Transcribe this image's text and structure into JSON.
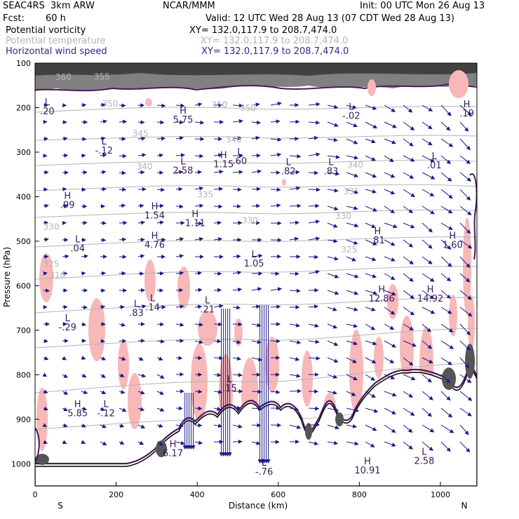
{
  "header": {
    "model": "SEAC4RS  3km ARW",
    "org": "NCAR/MMM",
    "init": "Init: 00 UTC Mon 26 Aug 13",
    "fcst_label": "Fcst:",
    "fcst_value": "60 h",
    "valid": "Valid: 12 UTC Wed 28 Aug 13 (07 CDT Wed 28 Aug 13)",
    "field1": "Potential vorticity",
    "field2": "Potential temperature",
    "field3": "Horizontal wind speed",
    "xy1": "XY= 132.0,117.9 to 208.7,474.0",
    "xy2": "XY= 132.0,117.9 to 208.7,474.0",
    "xy3": "XY= 132.0,117.9 to 208.7,474.0"
  },
  "colors": {
    "pv_shade": "#f8b8b8",
    "theta_contour": "#b4b4b4",
    "wind_arrow": "#1a1a8c",
    "terrain_line": "#000000",
    "pv_contour": "#4a1a5a"
  },
  "chart_data": {
    "type": "cross-section",
    "xlabel": "Distance (km)",
    "ylabel": "Pressure (hPa)",
    "xlim": [
      0,
      1090
    ],
    "ylim": [
      1050,
      100
    ],
    "x_ticks": [
      "0",
      "200",
      "400",
      "600",
      "800",
      "1000"
    ],
    "y_ticks": [
      "100",
      "200",
      "300",
      "400",
      "500",
      "600",
      "700",
      "800",
      "900",
      "1000"
    ],
    "x_end_labels": {
      "left": "S",
      "right": "N"
    },
    "theta_labels": [
      {
        "label": "350",
        "x": 185,
        "p": 198
      },
      {
        "label": "350",
        "x": 455,
        "p": 200
      },
      {
        "label": "350",
        "x": 525,
        "p": 207
      },
      {
        "label": "345",
        "x": 260,
        "p": 265
      },
      {
        "label": "345",
        "x": 490,
        "p": 278
      },
      {
        "label": "340",
        "x": 270,
        "p": 339
      },
      {
        "label": "340",
        "x": 790,
        "p": 335
      },
      {
        "label": "335",
        "x": 420,
        "p": 402
      },
      {
        "label": "335",
        "x": 780,
        "p": 395
      },
      {
        "label": "330",
        "x": 40,
        "p": 474
      },
      {
        "label": "330",
        "x": 530,
        "p": 460
      },
      {
        "label": "330",
        "x": 760,
        "p": 450
      },
      {
        "label": "325",
        "x": 40,
        "p": 558
      },
      {
        "label": "325",
        "x": 775,
        "p": 525
      },
      {
        "label": "310",
        "x": 55,
        "p": 583
      },
      {
        "label": "360",
        "x": 70,
        "p": 138
      },
      {
        "label": "355",
        "x": 165,
        "p": 137
      }
    ],
    "pv_extrema": [
      {
        "type": "L",
        "value": ".20",
        "x": 30,
        "p": 215
      },
      {
        "type": "L",
        "value": "-.12",
        "x": 170,
        "p": 303
      },
      {
        "type": "H",
        "value": "5.75",
        "x": 365,
        "p": 234
      },
      {
        "type": "L",
        "value": "-.02",
        "x": 780,
        "p": 225
      },
      {
        "type": "H",
        "value": ".19",
        "x": 1065,
        "p": 220
      },
      {
        "type": "L",
        "value": "2.58",
        "x": 365,
        "p": 348
      },
      {
        "type": "H",
        "value": "1.15",
        "x": 465,
        "p": 334
      },
      {
        "type": "L",
        "value": ".60",
        "x": 505,
        "p": 327
      },
      {
        "type": "L",
        "value": ".82",
        "x": 625,
        "p": 350
      },
      {
        "type": "L",
        "value": ".83",
        "x": 730,
        "p": 350
      },
      {
        "type": "L",
        "value": ".01",
        "x": 985,
        "p": 336
      },
      {
        "type": "H",
        "value": ".99",
        "x": 80,
        "p": 425
      },
      {
        "type": "H",
        "value": "1.54",
        "x": 295,
        "p": 449
      },
      {
        "type": "H",
        "value": "1.11",
        "x": 395,
        "p": 466
      },
      {
        "type": "L",
        "value": ".04",
        "x": 105,
        "p": 523
      },
      {
        "type": "H",
        "value": "4.76",
        "x": 295,
        "p": 515
      },
      {
        "type": "H",
        "value": ".81",
        "x": 845,
        "p": 505
      },
      {
        "type": "H",
        "value": "1.60",
        "x": 1030,
        "p": 515
      },
      {
        "type": "L",
        "value": "1.05",
        "x": 540,
        "p": 557
      },
      {
        "type": "H",
        "value": "12.86",
        "x": 855,
        "p": 636
      },
      {
        "type": "H",
        "value": "14.92",
        "x": 975,
        "p": 636
      },
      {
        "type": "L",
        "value": ".83",
        "x": 250,
        "p": 668
      },
      {
        "type": "L",
        "value": ".14",
        "x": 290,
        "p": 655
      },
      {
        "type": "L",
        "value": ".21",
        "x": 425,
        "p": 660
      },
      {
        "type": "L",
        "value": "-.29",
        "x": 80,
        "p": 700
      },
      {
        "type": "L",
        "value": ".15",
        "x": 480,
        "p": 837
      },
      {
        "type": "H",
        "value": "5.85",
        "x": 105,
        "p": 893
      },
      {
        "type": "L",
        "value": "-.12",
        "x": 175,
        "p": 893
      },
      {
        "type": "H",
        "value": "6.17",
        "x": 340,
        "p": 983
      },
      {
        "type": "L",
        "value": "2.58",
        "x": 960,
        "p": 1000
      },
      {
        "type": "H",
        "value": "10.91",
        "x": 820,
        "p": 1022
      },
      {
        "type": "L",
        "value": "-.76",
        "x": 565,
        "p": 1025
      }
    ]
  }
}
